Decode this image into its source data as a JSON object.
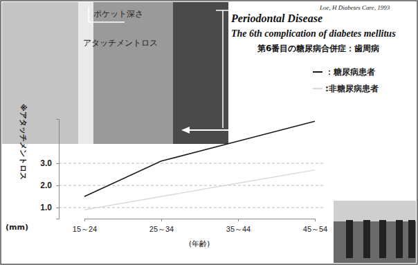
{
  "chart_data": {
    "type": "line",
    "title": "Periodontal Disease",
    "subtitle": "The 6th complication of diabetes mellitus",
    "subtitle_ja": "第6番目の糖尿病合併症：歯周病",
    "citation": "Loe, H Diabetes Care, 1993",
    "photo_labels": [
      "ポケット深さ",
      "アタッチメントロス"
    ],
    "y_label": "※アタッチメントロス",
    "y_unit": "(mm)",
    "x_label": "(年齢)",
    "categories": [
      "15～24",
      "25～34",
      "35～44",
      "45～54"
    ],
    "series": [
      {
        "name": "：糖尿病患者",
        "color": "#1a1a1a",
        "values": [
          1.5,
          3.1,
          4.0,
          4.9
        ]
      },
      {
        "name": ":非糖尿病患者",
        "color": "#d9d9d9",
        "values": [
          0.9,
          1.5,
          2.1,
          2.7
        ]
      }
    ],
    "ylim": [
      0.5,
      5.0
    ],
    "yticks": [
      {
        "value": 1,
        "label": "1.0"
      },
      {
        "value": 2,
        "label": "2.0"
      },
      {
        "value": 3,
        "label": "3.0"
      }
    ],
    "grid": true,
    "legend": "upper right"
  }
}
